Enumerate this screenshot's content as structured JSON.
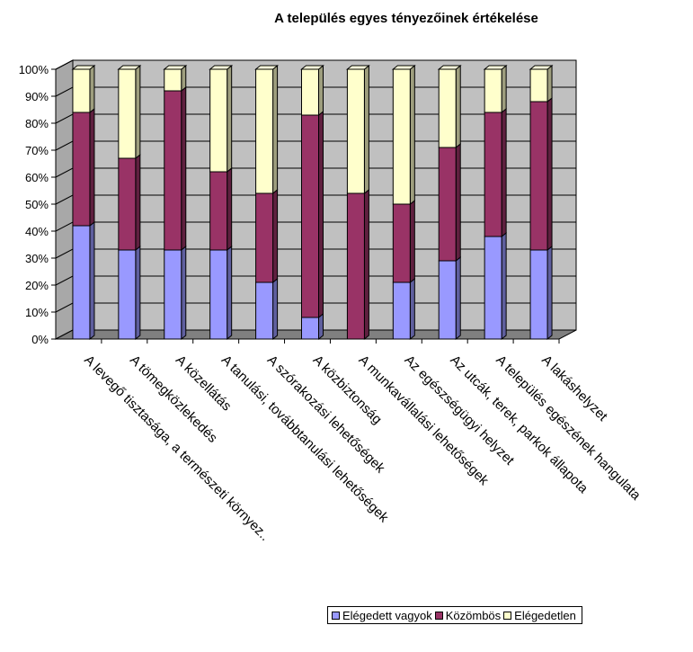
{
  "chart_data": {
    "type": "bar",
    "stacked": "percent",
    "title": "A település egyes tényezőinek értékelése",
    "xlabel": "",
    "ylabel": "",
    "ylim": [
      0,
      100
    ],
    "yticks": [
      "0%",
      "10%",
      "20%",
      "30%",
      "40%",
      "50%",
      "60%",
      "70%",
      "80%",
      "90%",
      "100%"
    ],
    "grid": true,
    "legend_position": "bottom",
    "categories": [
      "A levegő tisztasága, a természeti környez..",
      "A tömegközlekedés",
      "A közellátás",
      "A tanulási, továbbtanulási lehetőségek",
      "A szórakozási lehetőségek",
      "A közbiztonság",
      "A munkavállalási lehetőségek",
      "Az egészségügyi helyzet",
      "Az utcák, terek, parkok állapota",
      "A település egészének hangulata",
      "A lakáshelyzet"
    ],
    "series": [
      {
        "name": "Elégedett vagyok",
        "color": "#9999ff",
        "side": "#5c5cb0",
        "top": "#c4c4ff",
        "values": [
          42,
          33,
          33,
          33,
          21,
          8,
          0,
          21,
          29,
          38,
          33
        ]
      },
      {
        "name": "Közömbös",
        "color": "#993366",
        "side": "#5e1f3e",
        "top": "#b86e92",
        "values": [
          42,
          34,
          59,
          29,
          33,
          75,
          54,
          29,
          42,
          46,
          55
        ]
      },
      {
        "name": "Elégedetlen",
        "color": "#ffffcc",
        "side": "#a6a67a",
        "top": "#ffffe6",
        "values": [
          16,
          33,
          8,
          38,
          46,
          17,
          46,
          50,
          29,
          16,
          12
        ]
      }
    ]
  }
}
